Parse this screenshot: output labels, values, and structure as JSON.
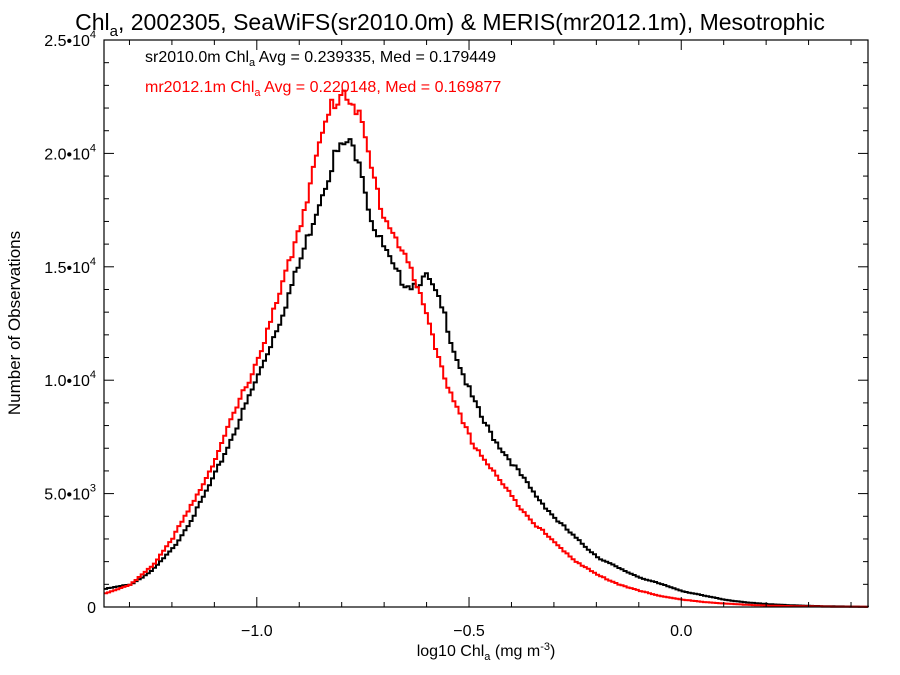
{
  "chart_data": {
    "type": "line",
    "title": {
      "prefix": "Chl",
      "sub": "a",
      "suffix": ", 2002305, SeaWiFS(sr2010.0m) & MERIS(mr2012.1m), Mesotrophic"
    },
    "xlabel": {
      "prefix": "log10 Chl",
      "sub": "a",
      "suffix": " (mg m",
      "sup": "-3",
      "end": ")"
    },
    "ylabel": "Number of Observations",
    "xlim": [
      -1.36,
      0.44
    ],
    "ylim": [
      0,
      25000
    ],
    "x_ticks": [
      {
        "value": -1.0,
        "label": "−1.0"
      },
      {
        "value": -0.5,
        "label": "−0.5"
      },
      {
        "value": 0.0,
        "label": "0.0"
      }
    ],
    "y_ticks": [
      {
        "value": 0,
        "mant": "0",
        "exp": ""
      },
      {
        "value": 5000,
        "mant": "5.0•10",
        "exp": "3"
      },
      {
        "value": 10000,
        "mant": "1.0•10",
        "exp": "4"
      },
      {
        "value": 15000,
        "mant": "1.5•10",
        "exp": "4"
      },
      {
        "value": 20000,
        "mant": "2.0•10",
        "exp": "4"
      },
      {
        "value": 25000,
        "mant": "2.5•10",
        "exp": "4"
      }
    ],
    "grid": false,
    "legend": {
      "placement": "top-left",
      "entries": [
        {
          "prefix": "sr2010.0m Chl",
          "sub": "a",
          "suffix": " Avg = 0.239335, Med = 0.179449",
          "color": "#000000"
        },
        {
          "prefix": "mr2012.1m Chl",
          "sub": "a",
          "suffix": " Avg = 0.220148, Med = 0.169877",
          "color": "#ff0000"
        }
      ]
    },
    "series": [
      {
        "color": "#000000",
        "x": [
          -1.36,
          -1.3,
          -1.25,
          -1.2,
          -1.15,
          -1.1,
          -1.05,
          -1.0,
          -0.95,
          -0.9,
          -0.86,
          -0.82,
          -0.79,
          -0.76,
          -0.74,
          -0.72,
          -0.7,
          -0.68,
          -0.66,
          -0.64,
          -0.62,
          -0.6,
          -0.58,
          -0.56,
          -0.54,
          -0.52,
          -0.5,
          -0.47,
          -0.44,
          -0.4,
          -0.35,
          -0.3,
          -0.25,
          -0.2,
          -0.15,
          -0.1,
          -0.05,
          0.0,
          0.05,
          0.1,
          0.15,
          0.2,
          0.25,
          0.3,
          0.35,
          0.44
        ],
        "y": [
          800,
          1000,
          1600,
          2600,
          4100,
          5900,
          8000,
          10200,
          12600,
          15300,
          17700,
          19900,
          20500,
          19800,
          17600,
          16400,
          15700,
          14800,
          14400,
          14200,
          14400,
          14500,
          13700,
          12800,
          11400,
          10400,
          9400,
          8200,
          7300,
          6300,
          5000,
          3900,
          3000,
          2200,
          1700,
          1300,
          1000,
          700,
          500,
          320,
          200,
          130,
          80,
          50,
          30,
          10
        ]
      },
      {
        "color": "#ff0000",
        "x": [
          -1.36,
          -1.3,
          -1.25,
          -1.2,
          -1.15,
          -1.1,
          -1.05,
          -1.0,
          -0.95,
          -0.9,
          -0.86,
          -0.83,
          -0.8,
          -0.78,
          -0.76,
          -0.74,
          -0.72,
          -0.7,
          -0.68,
          -0.66,
          -0.64,
          -0.62,
          -0.6,
          -0.58,
          -0.56,
          -0.54,
          -0.52,
          -0.5,
          -0.47,
          -0.44,
          -0.4,
          -0.35,
          -0.3,
          -0.25,
          -0.2,
          -0.15,
          -0.1,
          -0.05,
          0.0,
          0.05,
          0.1,
          0.15,
          0.2,
          0.25,
          0.3,
          0.35,
          0.44
        ],
        "y": [
          600,
          1000,
          1800,
          3100,
          4700,
          6600,
          8800,
          11000,
          13700,
          17000,
          20000,
          22000,
          22800,
          22500,
          21500,
          19800,
          18300,
          17100,
          16500,
          15700,
          14800,
          13700,
          12800,
          11400,
          10100,
          9000,
          8200,
          7400,
          6600,
          5800,
          4800,
          3700,
          2800,
          2000,
          1400,
          1000,
          700,
          480,
          320,
          220,
          150,
          100,
          60,
          40,
          25,
          15,
          5
        ]
      }
    ]
  }
}
